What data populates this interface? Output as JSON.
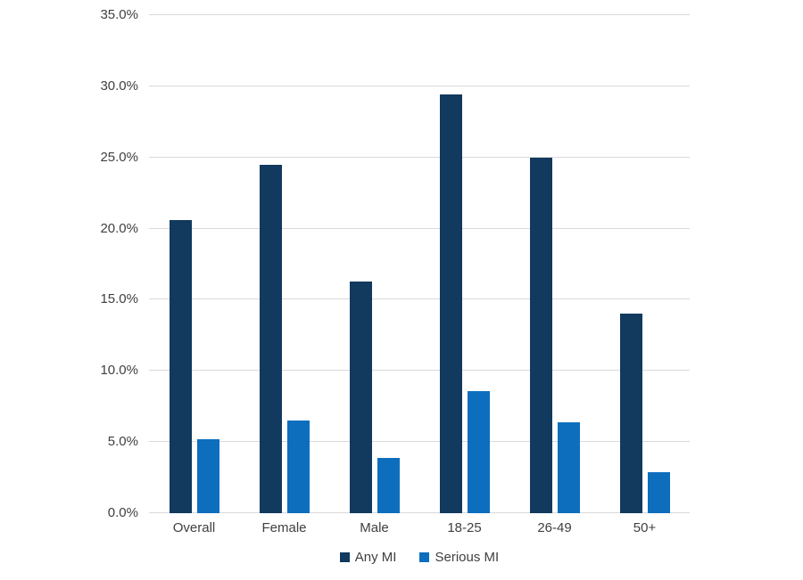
{
  "chart_data": {
    "type": "bar",
    "title": "",
    "xlabel": "",
    "ylabel": "",
    "categories": [
      "Overall",
      "Female",
      "Male",
      "18-25",
      "26-49",
      "50+"
    ],
    "series": [
      {
        "name": "Any MI",
        "color": "#12395E",
        "values": [
          20.6,
          24.5,
          16.3,
          29.4,
          25.0,
          14.0
        ]
      },
      {
        "name": "Serious MI",
        "color": "#0D6EBE",
        "values": [
          5.2,
          6.5,
          3.9,
          8.6,
          6.4,
          2.9
        ]
      }
    ],
    "ylim": [
      0,
      35
    ],
    "ytick_step": 5,
    "ytick_labels": [
      "0.0%",
      "5.0%",
      "10.0%",
      "15.0%",
      "20.0%",
      "25.0%",
      "30.0%",
      "35.0%"
    ],
    "grid": true,
    "legend_position": "bottom",
    "colors": {
      "gridline": "#D9D9D9",
      "text": "#404040",
      "background": "#FFFFFF"
    }
  }
}
